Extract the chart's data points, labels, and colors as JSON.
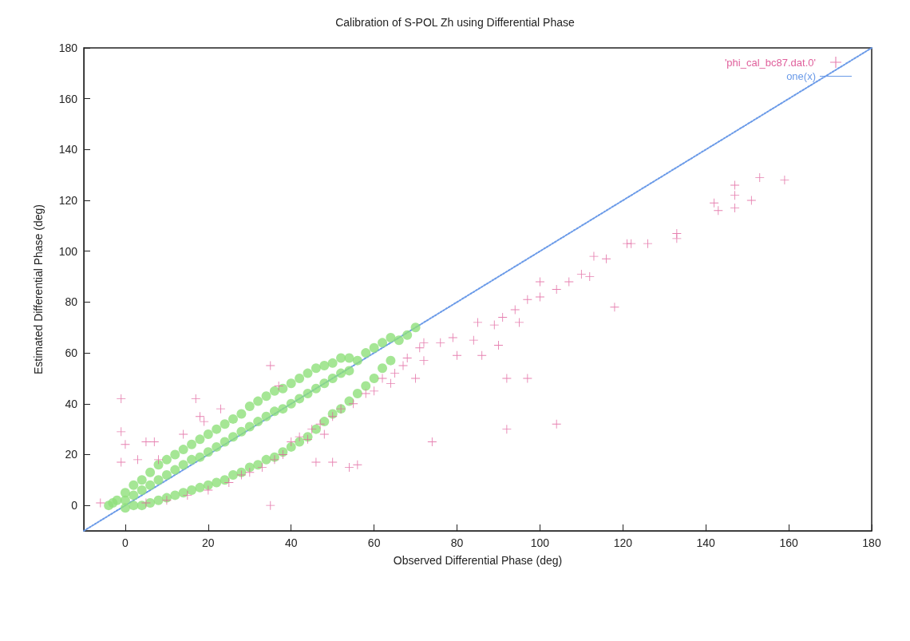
{
  "chart_data": {
    "type": "scatter",
    "title": "Calibration of S-POL Zh using Differential Phase",
    "xlabel": "Observed Differential Phase (deg)",
    "ylabel": "Estimated Differential Phase (deg)",
    "xlim": [
      -10,
      180
    ],
    "xticks": [
      0,
      20,
      40,
      60,
      80,
      100,
      120,
      140,
      160,
      180
    ],
    "ylim": [
      -10,
      180
    ],
    "yticks": [
      0,
      20,
      40,
      60,
      80,
      100,
      120,
      140,
      160,
      180
    ],
    "grid": false,
    "legend": "top right",
    "series": [
      {
        "name": "'phi_cal_bc87.dat.0'",
        "color": "#e0609c",
        "marker": "cross",
        "x": [
          -6,
          -1,
          -1,
          0,
          -1,
          3,
          5,
          7,
          8,
          14,
          17,
          18,
          19,
          23,
          35,
          37,
          35,
          46,
          50,
          54,
          56,
          5,
          10,
          15,
          20,
          25,
          28,
          30,
          33,
          36,
          38,
          40,
          42,
          44,
          45,
          47,
          48,
          50,
          52,
          55,
          58,
          60,
          62,
          64,
          65,
          67,
          68,
          70,
          71,
          72,
          72,
          74,
          76,
          79,
          80,
          84,
          85,
          86,
          89,
          90,
          91,
          92,
          92,
          94,
          95,
          97,
          97,
          100,
          100,
          104,
          104,
          107,
          110,
          112,
          113,
          116,
          118,
          121,
          122,
          126,
          133,
          133,
          142,
          143,
          147,
          147,
          147,
          151,
          153,
          159
        ],
        "values": [
          1,
          42,
          29,
          24,
          17,
          18,
          25,
          25,
          18,
          28,
          42,
          35,
          33,
          38,
          55,
          47,
          0,
          17,
          17,
          15,
          16,
          1,
          2,
          4,
          6,
          9,
          12,
          13,
          15,
          18,
          20,
          25,
          27,
          26,
          30,
          32,
          28,
          35,
          38,
          40,
          44,
          45,
          50,
          48,
          52,
          55,
          58,
          50,
          62,
          57,
          64,
          25,
          64,
          66,
          59,
          65,
          72,
          59,
          71,
          63,
          74,
          50,
          30,
          77,
          72,
          81,
          50,
          88,
          82,
          85,
          32,
          88,
          91,
          90,
          98,
          97,
          78,
          103,
          103,
          103,
          105,
          107,
          119,
          116,
          122,
          126,
          117,
          120,
          129,
          128
        ]
      },
      {
        "color": "#8ee07a",
        "marker": "circle",
        "x": [
          -4,
          -3,
          -2,
          0,
          0,
          0,
          2,
          2,
          2,
          4,
          4,
          4,
          6,
          6,
          6,
          8,
          8,
          8,
          10,
          10,
          10,
          12,
          12,
          12,
          14,
          14,
          14,
          16,
          16,
          16,
          18,
          18,
          18,
          20,
          20,
          20,
          22,
          22,
          22,
          24,
          24,
          24,
          26,
          26,
          26,
          28,
          28,
          28,
          30,
          30,
          30,
          32,
          32,
          32,
          34,
          34,
          34,
          36,
          36,
          36,
          38,
          38,
          38,
          40,
          40,
          40,
          42,
          42,
          42,
          44,
          44,
          44,
          46,
          46,
          46,
          48,
          48,
          48,
          50,
          50,
          50,
          52,
          52,
          52,
          54,
          54,
          54,
          56,
          56,
          58,
          58,
          60,
          60,
          62,
          62,
          64,
          64,
          66,
          68,
          70
        ],
        "values": [
          0,
          1,
          2,
          -1,
          2,
          5,
          0,
          4,
          8,
          0,
          6,
          10,
          1,
          8,
          13,
          2,
          10,
          16,
          3,
          12,
          18,
          4,
          14,
          20,
          5,
          16,
          22,
          6,
          18,
          24,
          7,
          19,
          26,
          8,
          21,
          28,
          9,
          23,
          30,
          10,
          25,
          32,
          12,
          27,
          34,
          13,
          29,
          36,
          15,
          31,
          39,
          16,
          33,
          41,
          18,
          35,
          43,
          19,
          37,
          45,
          21,
          38,
          46,
          23,
          40,
          48,
          25,
          42,
          50,
          27,
          44,
          52,
          30,
          46,
          54,
          33,
          48,
          55,
          36,
          50,
          56,
          38,
          52,
          58,
          41,
          53,
          58,
          44,
          57,
          47,
          60,
          50,
          62,
          54,
          64,
          57,
          66,
          65,
          67,
          70
        ]
      },
      {
        "name": "one(x)",
        "type": "line",
        "color": "#6a9ae8",
        "line_style": "dotted",
        "marker": "none",
        "x": [
          -10,
          180
        ],
        "values": [
          -10,
          180
        ]
      }
    ]
  }
}
